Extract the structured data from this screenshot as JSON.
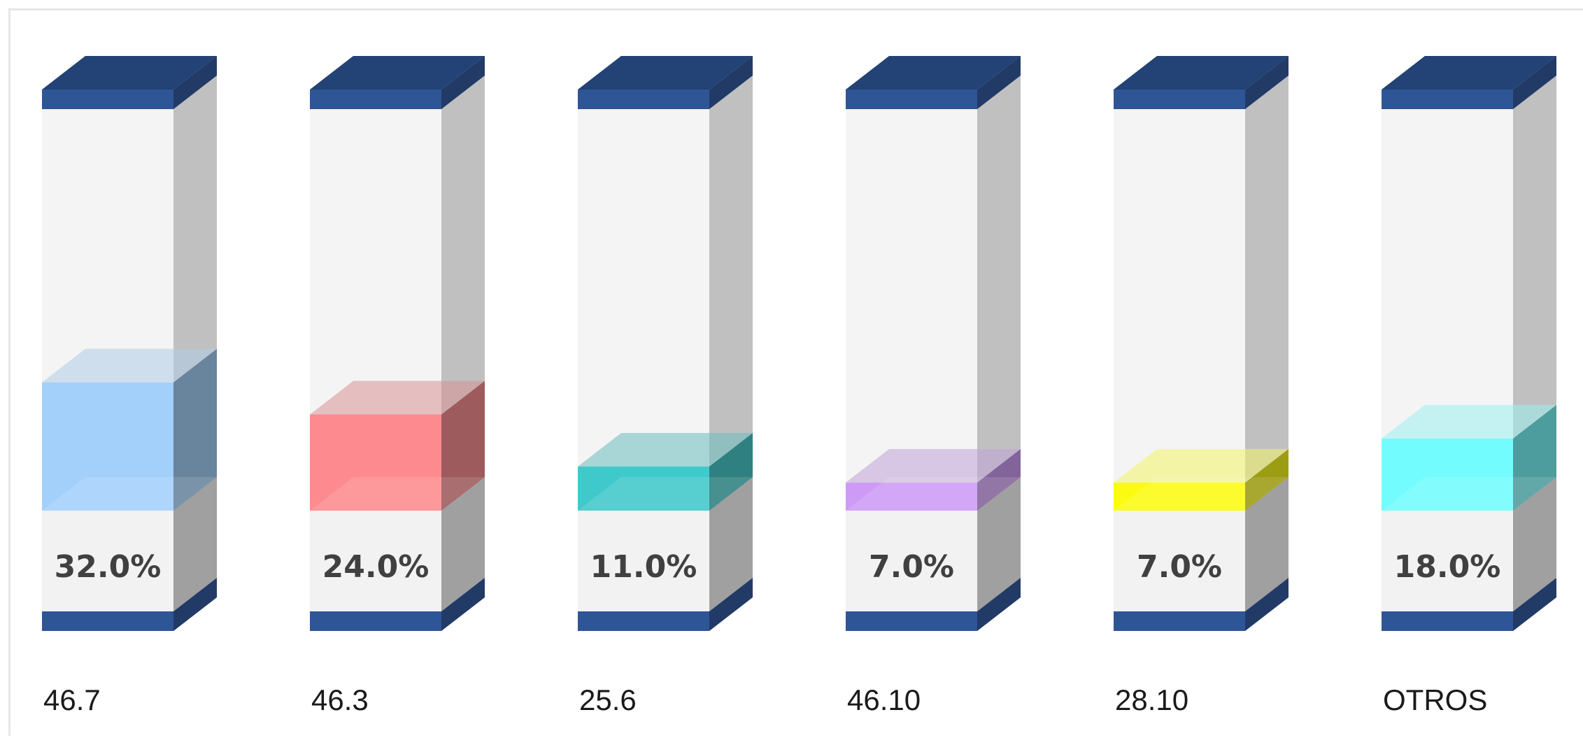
{
  "chart_data": {
    "type": "bar",
    "categories": [
      "46.7",
      "46.3",
      "25.6",
      "46.10",
      "28.10",
      "OTROS"
    ],
    "values": [
      32.0,
      24.0,
      11.0,
      7.0,
      7.0,
      18.0
    ],
    "value_labels": [
      "32.0%",
      "24.0%",
      "11.0%",
      "7.0%",
      "7.0%",
      "18.0%"
    ],
    "ylim": [
      0,
      100
    ],
    "grid": false,
    "title": "",
    "xlabel": "",
    "ylabel": ""
  },
  "colors": {
    "fills": [
      "#a3d0fb",
      "#fd8a8e",
      "#40c9cb",
      "#cd9bf6",
      "#fbfb11",
      "#72fcfd"
    ],
    "cap": "#2e5596",
    "cap_dark": "#223a66",
    "column_front": "#f4f4f4",
    "column_side": "#c0c0c0",
    "label_area_side": "#a0a0a0"
  }
}
